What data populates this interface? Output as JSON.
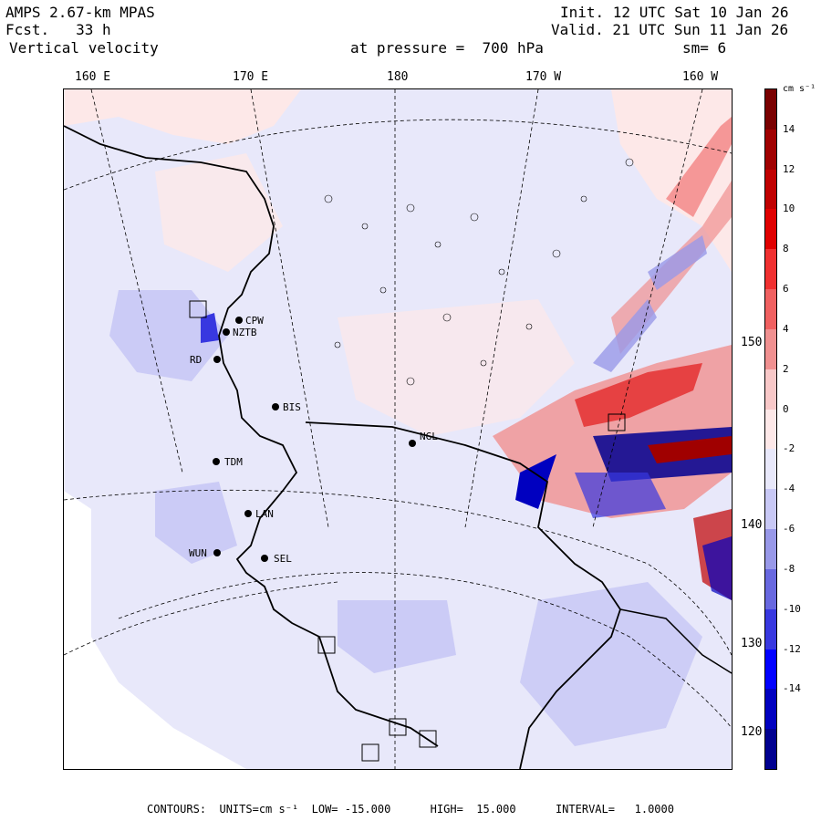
{
  "header": {
    "model": "AMPS 2.67-km MPAS",
    "forecast": "Fcst.   33 h",
    "field": "Vertical velocity",
    "init": "Init. 12 UTC Sat 10 Jan 26",
    "valid": "Valid. 21 UTC Sun 11 Jan 26",
    "pressure": "at pressure =  700 hPa",
    "smoothing": "sm= 6"
  },
  "longitude_labels": [
    "160 E",
    "170 E",
    "180",
    "170 W",
    "160 W"
  ],
  "latitude_labels": [
    "150 W",
    "140 W",
    "130 W",
    "120 W"
  ],
  "colorbar": {
    "units": "cm s⁻¹",
    "ticks": [
      "14",
      "12",
      "10",
      "8",
      "6",
      "4",
      "2",
      "0",
      "-2",
      "-4",
      "-6",
      "-8",
      "-10",
      "-12",
      "-14"
    ],
    "colors": [
      "#7a0000",
      "#a00000",
      "#c00000",
      "#e00000",
      "#f03030",
      "#f06060",
      "#f09090",
      "#f8c8c8",
      "#fde8e8",
      "#e8e8fa",
      "#c8c8f5",
      "#9898e8",
      "#6868e0",
      "#3838e0",
      "#0000ff",
      "#0000c0",
      "#000090"
    ]
  },
  "stations": [
    {
      "id": "CPW"
    },
    {
      "id": "NZTB"
    },
    {
      "id": "RD"
    },
    {
      "id": "BIS"
    },
    {
      "id": "NGL"
    },
    {
      "id": "TDM"
    },
    {
      "id": "LAN"
    },
    {
      "id": "WUN"
    },
    {
      "id": "SEL"
    }
  ],
  "footer": "CONTOURS:  UNITS=cm s⁻¹  LOW= -15.000      HIGH=  15.000      INTERVAL=   1.0000"
}
